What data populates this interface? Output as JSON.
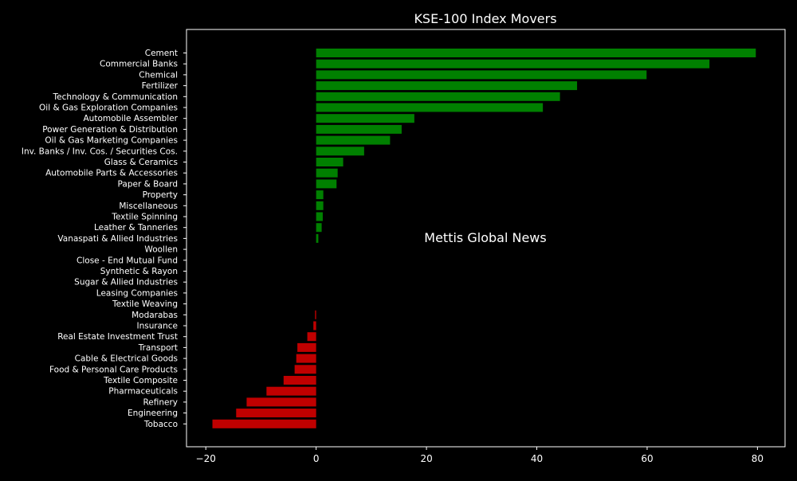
{
  "chart_data": {
    "type": "bar",
    "orientation": "horizontal",
    "title": "KSE-100 Index Movers",
    "xlabel": "",
    "ylabel": "",
    "xlim": [
      -23.5,
      85
    ],
    "xticks": [
      -20,
      0,
      20,
      40,
      60,
      80
    ],
    "watermark": "Mettis Global News",
    "colors": {
      "positive": "#008000",
      "negative": "#c00000",
      "background": "#000000",
      "axes": "#ffffff",
      "text": "#ffffff",
      "watermark": "#a0522d"
    },
    "categories": [
      "Cement",
      "Commercial Banks",
      "Chemical",
      "Fertilizer",
      "Technology & Communication",
      "Oil & Gas Exploration Companies",
      "Automobile Assembler",
      "Power Generation & Distribution",
      "Oil & Gas Marketing Companies",
      "Inv. Banks / Inv. Cos. / Securities Cos.",
      "Glass & Ceramics",
      "Automobile Parts & Accessories",
      "Paper & Board",
      "Property",
      "Miscellaneous",
      "Textile Spinning",
      "Leather & Tanneries",
      "Vanaspati & Allied Industries",
      "Woollen",
      "Close - End Mutual Fund",
      "Synthetic & Rayon",
      "Sugar & Allied Industries",
      "Leasing Companies",
      "Textile Weaving",
      "Modarabas",
      "Insurance",
      "Real Estate Investment Trust",
      "Transport",
      "Cable & Electrical Goods",
      "Food & Personal Care Products",
      "Textile Composite",
      "Pharmaceuticals",
      "Refinery",
      "Engineering",
      "Tobacco"
    ],
    "values": [
      79.7,
      71.3,
      59.9,
      47.3,
      44.2,
      41.1,
      17.8,
      15.5,
      13.4,
      8.7,
      4.9,
      3.9,
      3.7,
      1.3,
      1.3,
      1.2,
      1.0,
      0.4,
      0,
      0,
      0,
      0,
      0,
      0,
      -0.2,
      -0.5,
      -1.6,
      -3.4,
      -3.6,
      -3.9,
      -5.9,
      -9.0,
      -12.6,
      -14.5,
      -18.8
    ]
  }
}
